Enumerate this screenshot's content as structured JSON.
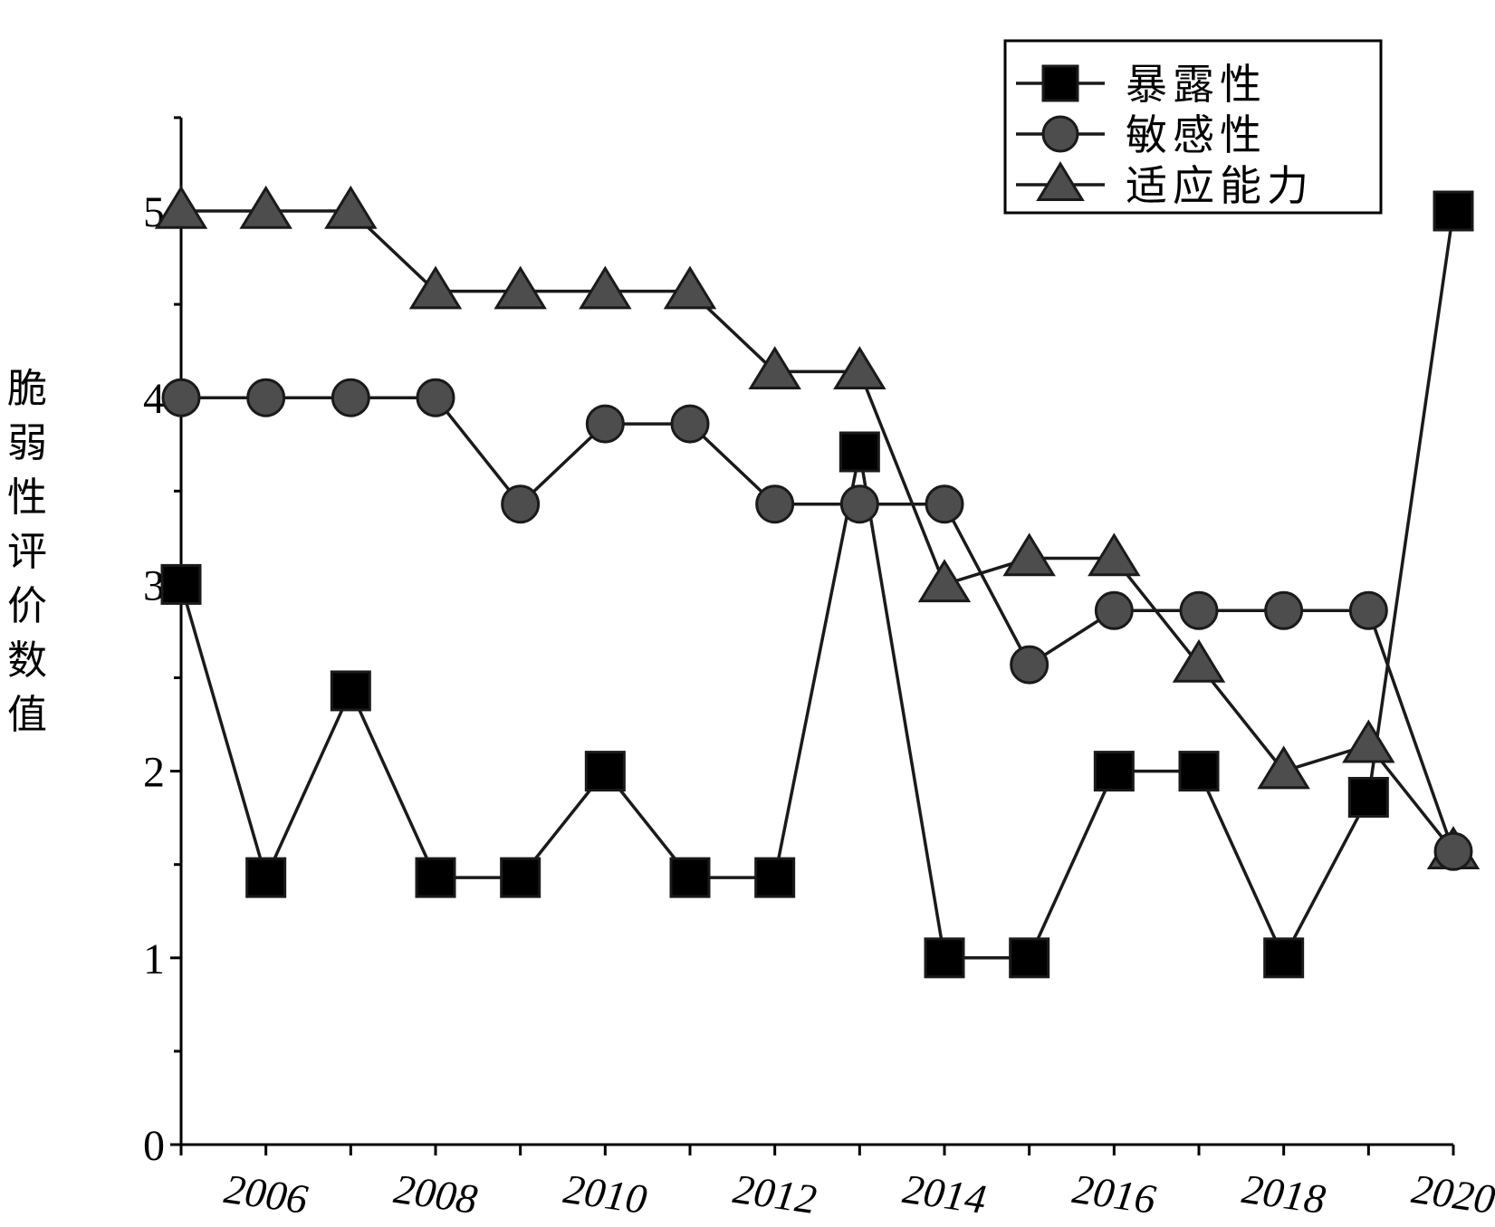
{
  "chart_data": {
    "type": "line",
    "ylabel": "脆弱性评价数值",
    "xlabel": "",
    "x": [
      2005,
      2006,
      2007,
      2008,
      2009,
      2010,
      2011,
      2012,
      2013,
      2014,
      2015,
      2016,
      2017,
      2018,
      2019,
      2020
    ],
    "xticks": [
      "2006",
      "2008",
      "2010",
      "2012",
      "2014",
      "2016",
      "2018",
      "2020"
    ],
    "yticks": [
      "0",
      "1",
      "2",
      "3",
      "4",
      "5"
    ],
    "ylim": [
      0,
      5.5
    ],
    "xlim": [
      2005,
      2020
    ],
    "legend_position": "top-right",
    "series": [
      {
        "name": "暴露性",
        "marker": "square",
        "color": "#000000",
        "values": [
          3.0,
          1.43,
          2.43,
          1.43,
          1.43,
          2.0,
          1.43,
          1.43,
          3.71,
          1.0,
          1.0,
          2.0,
          2.0,
          1.0,
          1.86,
          5.0
        ]
      },
      {
        "name": "敏感性",
        "marker": "circle",
        "color": "#4d4d4d",
        "values": [
          4.0,
          4.0,
          4.0,
          4.0,
          3.43,
          3.86,
          3.86,
          3.43,
          3.43,
          3.43,
          2.57,
          2.86,
          2.86,
          2.86,
          2.86,
          1.57
        ]
      },
      {
        "name": "适应能力",
        "marker": "triangle",
        "color": "#4d4d4d",
        "values": [
          5.0,
          5.0,
          5.0,
          4.57,
          4.57,
          4.57,
          4.57,
          4.14,
          4.14,
          3.0,
          3.14,
          3.14,
          2.57,
          2.0,
          2.14,
          1.57
        ]
      }
    ]
  }
}
